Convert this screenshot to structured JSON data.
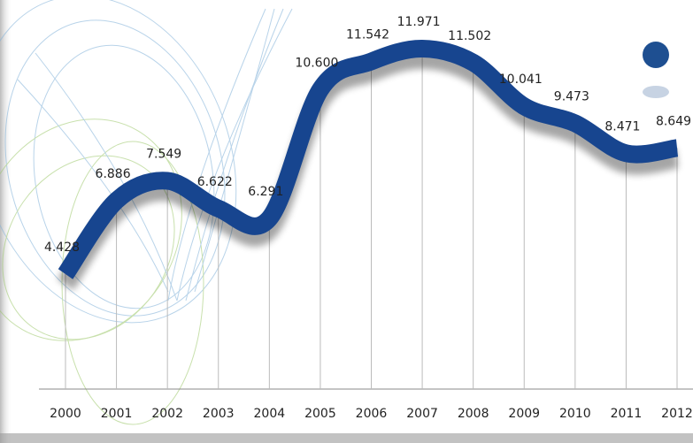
{
  "chart_data": {
    "type": "line",
    "categories": [
      "2000",
      "2001",
      "2002",
      "2003",
      "2004",
      "2005",
      "2006",
      "2007",
      "2008",
      "2009",
      "2010",
      "2011",
      "2012"
    ],
    "values": [
      4.428,
      6.886,
      7.549,
      6.622,
      6.291,
      10.6,
      11.542,
      11.971,
      11.502,
      10.041,
      9.473,
      8.471,
      8.649
    ],
    "value_labels": [
      "4.428",
      "6.886",
      "7.549",
      "6.622",
      "6.291",
      "10.600",
      "11.542",
      "11.971",
      "11.502",
      "10.041",
      "9.473",
      "8.471",
      "8.649"
    ],
    "color": "#17458f"
  }
}
